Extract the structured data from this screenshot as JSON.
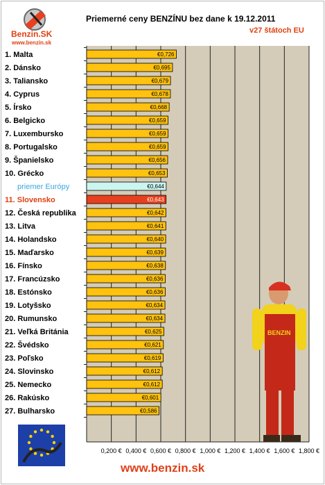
{
  "header": {
    "title": "Priemerné ceny BENZÍNU bez dane k 19.12.2011",
    "subtitle": "v27 štátoch EU",
    "logo_text": "Benzin.SK",
    "logo_url_text": "www.benzin.sk"
  },
  "footer": {
    "site": "www.benzin.sk"
  },
  "colors": {
    "bar": "#ffc20e",
    "bar_highlight": "#e8401e",
    "bar_europe": "#ccf5f0",
    "plot_bg": "#d4ccb8",
    "label_highlight": "#e04010",
    "label_europe": "#38a8e0"
  },
  "chart_data": {
    "type": "bar",
    "orientation": "horizontal",
    "categories": [
      "1. Malta",
      "2. Dánsko",
      "3. Taliansko",
      "4. Cyprus",
      "5. Írsko",
      "6. Belgicko",
      "7. Luxembursko",
      "8. Portugalsko",
      "9. Španielsko",
      "10. Grécko",
      "priemer Európy",
      "11. Slovensko",
      "12. Česká republika",
      "13. Litva",
      "14. Holandsko",
      "15. Maďarsko",
      "16. Fínsko",
      "17. Francúzsko",
      "18. Estónsko",
      "19. Lotyšsko",
      "20. Rumunsko",
      "21. Veľká Británia",
      "22. Švédsko",
      "23. Poľsko",
      "24. Slovinsko",
      "25. Nemecko",
      "26. Rakúsko",
      "27. Bulharsko"
    ],
    "values": [
      0.726,
      0.695,
      0.679,
      0.678,
      0.668,
      0.659,
      0.659,
      0.659,
      0.656,
      0.653,
      0.644,
      0.643,
      0.642,
      0.641,
      0.64,
      0.639,
      0.638,
      0.636,
      0.636,
      0.634,
      0.634,
      0.625,
      0.621,
      0.619,
      0.612,
      0.612,
      0.601,
      0.586
    ],
    "value_labels": [
      "€0,726",
      "€0,695",
      "€0,679",
      "€0,678",
      "€0,668",
      "€0,659",
      "€0,659",
      "€0,659",
      "€0,656",
      "€0,653",
      "€0,644",
      "€0,643",
      "€0,642",
      "€0,641",
      "€0,640",
      "€0,639",
      "€0,638",
      "€0,636",
      "€0,636",
      "€0,634",
      "€0,634",
      "€0,625",
      "€0,621",
      "€0,619",
      "€0,612",
      "€0,612",
      "€0,601",
      "€0,586"
    ],
    "highlight_index": 11,
    "europe_index": 10,
    "xlim": [
      0,
      1.8
    ],
    "xticks": [
      0.2,
      0.4,
      0.6,
      0.8,
      1.0,
      1.2,
      1.4,
      1.6,
      1.8
    ],
    "xtick_labels": [
      "0,200 €",
      "0,400 €",
      "0,600 €",
      "0,800 €",
      "1,000 €",
      "1,200 €",
      "1,400 €",
      "1,600 €",
      "1,800 €"
    ],
    "grid": true,
    "title": "Priemerné ceny BENZÍNU bez dane k 19.12.2011",
    "subtitle": "v27 štátoch EU"
  }
}
